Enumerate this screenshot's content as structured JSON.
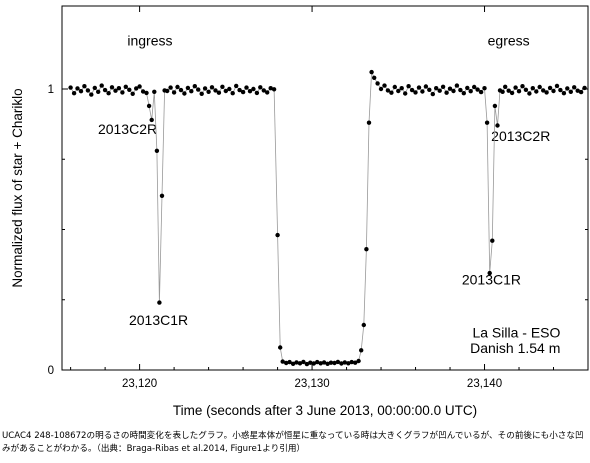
{
  "chart_data": {
    "type": "scatter",
    "title": "",
    "xlabel": "Time (seconds after 3 June 2013, 00:00:00.0 UTC)",
    "ylabel": "Normalized flux of star + Chariklo",
    "xlim": [
      23115.5,
      23146
    ],
    "ylim": [
      0,
      1.1
    ],
    "x_ticks": [
      {
        "value": 23120,
        "label": "23,120"
      },
      {
        "value": 23130,
        "label": "23,130"
      },
      {
        "value": 23140,
        "label": "23,140"
      }
    ],
    "y_ticks": [
      {
        "value": 0,
        "label": "0"
      },
      {
        "value": 1,
        "label": "1"
      }
    ],
    "annotations": [
      {
        "text": "ingress",
        "x": 23120.6,
        "y": 1.155,
        "anchor": "middle"
      },
      {
        "text": "egress",
        "x": 23141.4,
        "y": 1.155,
        "anchor": "middle"
      },
      {
        "text": "2013C2R",
        "x": 23119.3,
        "y": 0.84,
        "anchor": "middle"
      },
      {
        "text": "2013C1R",
        "x": 23121.1,
        "y": 0.16,
        "anchor": "middle"
      },
      {
        "text": "2013C1R",
        "x": 23140.4,
        "y": 0.305,
        "anchor": "middle"
      },
      {
        "text": "2013C2R",
        "x": 23142.1,
        "y": 0.815,
        "anchor": "middle"
      },
      {
        "text": "La Silla - ESO",
        "x": 23144.4,
        "y": 0.115,
        "anchor": "end"
      },
      {
        "text": "Danish 1.54 m",
        "x": 23144.4,
        "y": 0.06,
        "anchor": "end"
      }
    ],
    "series": [
      {
        "points": [
          [
            23116.0,
            1.005
          ],
          [
            23116.2,
            0.985
          ],
          [
            23116.4,
            1.002
          ],
          [
            23116.6,
            0.992
          ],
          [
            23116.8,
            1.01
          ],
          [
            23117.0,
            0.995
          ],
          [
            23117.2,
            0.98
          ],
          [
            23117.4,
            1.004
          ],
          [
            23117.6,
            0.99
          ],
          [
            23117.8,
            1.012
          ],
          [
            23118.0,
            0.996
          ],
          [
            23118.2,
            0.985
          ],
          [
            23118.4,
            1.006
          ],
          [
            23118.6,
            0.994
          ],
          [
            23118.8,
            1.003
          ],
          [
            23119.0,
            0.988
          ],
          [
            23119.2,
            1.008
          ],
          [
            23119.4,
            0.997
          ],
          [
            23119.6,
            0.983
          ],
          [
            23119.8,
            1.002
          ],
          [
            23120.0,
            1.009
          ],
          [
            23120.2,
            0.991
          ],
          [
            23120.4,
            0.986
          ],
          [
            23120.55,
            0.94
          ],
          [
            23120.7,
            0.89
          ],
          [
            23120.85,
            0.99
          ],
          [
            23121.0,
            0.78
          ],
          [
            23121.15,
            0.24
          ],
          [
            23121.3,
            0.62
          ],
          [
            23121.45,
            0.995
          ],
          [
            23121.6,
            0.993
          ],
          [
            23121.8,
            1.005
          ],
          [
            23122.0,
            0.988
          ],
          [
            23122.2,
            1.007
          ],
          [
            23122.4,
            0.996
          ],
          [
            23122.6,
            0.984
          ],
          [
            23122.8,
            1.004
          ],
          [
            23123.0,
            0.992
          ],
          [
            23123.2,
            1.01
          ],
          [
            23123.4,
            0.998
          ],
          [
            23123.6,
            0.983
          ],
          [
            23123.8,
            1.002
          ],
          [
            23124.0,
            0.99
          ],
          [
            23124.2,
            1.006
          ],
          [
            23124.4,
            0.995
          ],
          [
            23124.6,
            0.987
          ],
          [
            23124.8,
            1.008
          ],
          [
            23125.0,
            0.993
          ],
          [
            23125.2,
            1.0
          ],
          [
            23125.4,
            0.985
          ],
          [
            23125.6,
            1.011
          ],
          [
            23125.8,
            0.996
          ],
          [
            23126.0,
            0.989
          ],
          [
            23126.2,
            1.005
          ],
          [
            23126.4,
            0.992
          ],
          [
            23126.6,
            1.0
          ],
          [
            23126.8,
            0.986
          ],
          [
            23127.0,
            1.006
          ],
          [
            23127.2,
            0.995
          ],
          [
            23127.4,
            0.988
          ],
          [
            23127.6,
            1.003
          ],
          [
            23127.8,
            0.999
          ],
          [
            23128.0,
            0.48
          ],
          [
            23128.15,
            0.08
          ],
          [
            23128.3,
            0.03
          ],
          [
            23128.5,
            0.025
          ],
          [
            23128.7,
            0.028
          ],
          [
            23128.9,
            0.022
          ],
          [
            23129.1,
            0.027
          ],
          [
            23129.3,
            0.024
          ],
          [
            23129.5,
            0.029
          ],
          [
            23129.7,
            0.021
          ],
          [
            23129.9,
            0.026
          ],
          [
            23130.1,
            0.023
          ],
          [
            23130.3,
            0.028
          ],
          [
            23130.5,
            0.024
          ],
          [
            23130.7,
            0.027
          ],
          [
            23130.9,
            0.022
          ],
          [
            23131.1,
            0.026
          ],
          [
            23131.3,
            0.025
          ],
          [
            23131.5,
            0.029
          ],
          [
            23131.7,
            0.023
          ],
          [
            23131.9,
            0.027
          ],
          [
            23132.1,
            0.024
          ],
          [
            23132.3,
            0.028
          ],
          [
            23132.5,
            0.026
          ],
          [
            23132.7,
            0.032
          ],
          [
            23132.85,
            0.07
          ],
          [
            23133.0,
            0.16
          ],
          [
            23133.15,
            0.43
          ],
          [
            23133.3,
            0.88
          ],
          [
            23133.45,
            1.06
          ],
          [
            23133.6,
            1.04
          ],
          [
            23133.8,
            1.02
          ],
          [
            23134.0,
            1.0
          ],
          [
            23134.2,
            1.012
          ],
          [
            23134.4,
            0.995
          ],
          [
            23134.6,
            0.987
          ],
          [
            23134.8,
            1.007
          ],
          [
            23135.0,
            0.993
          ],
          [
            23135.2,
            1.003
          ],
          [
            23135.4,
            0.984
          ],
          [
            23135.6,
            1.01
          ],
          [
            23135.8,
            0.996
          ],
          [
            23136.0,
            0.988
          ],
          [
            23136.2,
            1.005
          ],
          [
            23136.4,
            0.991
          ],
          [
            23136.6,
            1.009
          ],
          [
            23136.8,
            0.997
          ],
          [
            23137.0,
            0.982
          ],
          [
            23137.2,
            1.003
          ],
          [
            23137.4,
            0.994
          ],
          [
            23137.6,
            1.008
          ],
          [
            23137.8,
            0.987
          ],
          [
            23138.0,
            1.001
          ],
          [
            23138.2,
            0.993
          ],
          [
            23138.4,
            1.012
          ],
          [
            23138.6,
            0.996
          ],
          [
            23138.8,
            0.985
          ],
          [
            23139.0,
            1.004
          ],
          [
            23139.2,
            0.992
          ],
          [
            23139.4,
            1.007
          ],
          [
            23139.6,
            0.998
          ],
          [
            23139.8,
            0.989
          ],
          [
            23140.0,
            1.003
          ],
          [
            23140.15,
            0.88
          ],
          [
            23140.3,
            0.345
          ],
          [
            23140.45,
            0.46
          ],
          [
            23140.6,
            0.94
          ],
          [
            23140.75,
            0.87
          ],
          [
            23140.9,
            0.995
          ],
          [
            23141.05,
            0.99
          ],
          [
            23141.2,
            1.008
          ],
          [
            23141.4,
            0.994
          ],
          [
            23141.6,
            0.986
          ],
          [
            23141.8,
            1.005
          ],
          [
            23142.0,
            0.992
          ],
          [
            23142.2,
            1.01
          ],
          [
            23142.4,
            0.997
          ],
          [
            23142.6,
            0.984
          ],
          [
            23142.8,
            1.003
          ],
          [
            23143.0,
            0.991
          ],
          [
            23143.2,
            1.007
          ],
          [
            23143.4,
            0.995
          ],
          [
            23143.6,
            0.988
          ],
          [
            23143.8,
            1.004
          ],
          [
            23144.0,
            0.993
          ],
          [
            23144.2,
            1.011
          ],
          [
            23144.4,
            0.996
          ],
          [
            23144.6,
            0.985
          ],
          [
            23144.8,
            1.002
          ],
          [
            23145.0,
            0.99
          ],
          [
            23145.2,
            1.006
          ],
          [
            23145.4,
            0.994
          ],
          [
            23145.6,
            0.989
          ],
          [
            23145.8,
            1.004
          ]
        ]
      }
    ]
  },
  "caption": "UCAC4 248-108672の明るさの時間変化を表したグラフ。小惑星本体が恒星に重なっている時は大きくグラフが凹んでいるが、その前後にも小さな凹みがあることがわかる。（出典：Braga-Ribas et al.2014, Figure1より引用）"
}
